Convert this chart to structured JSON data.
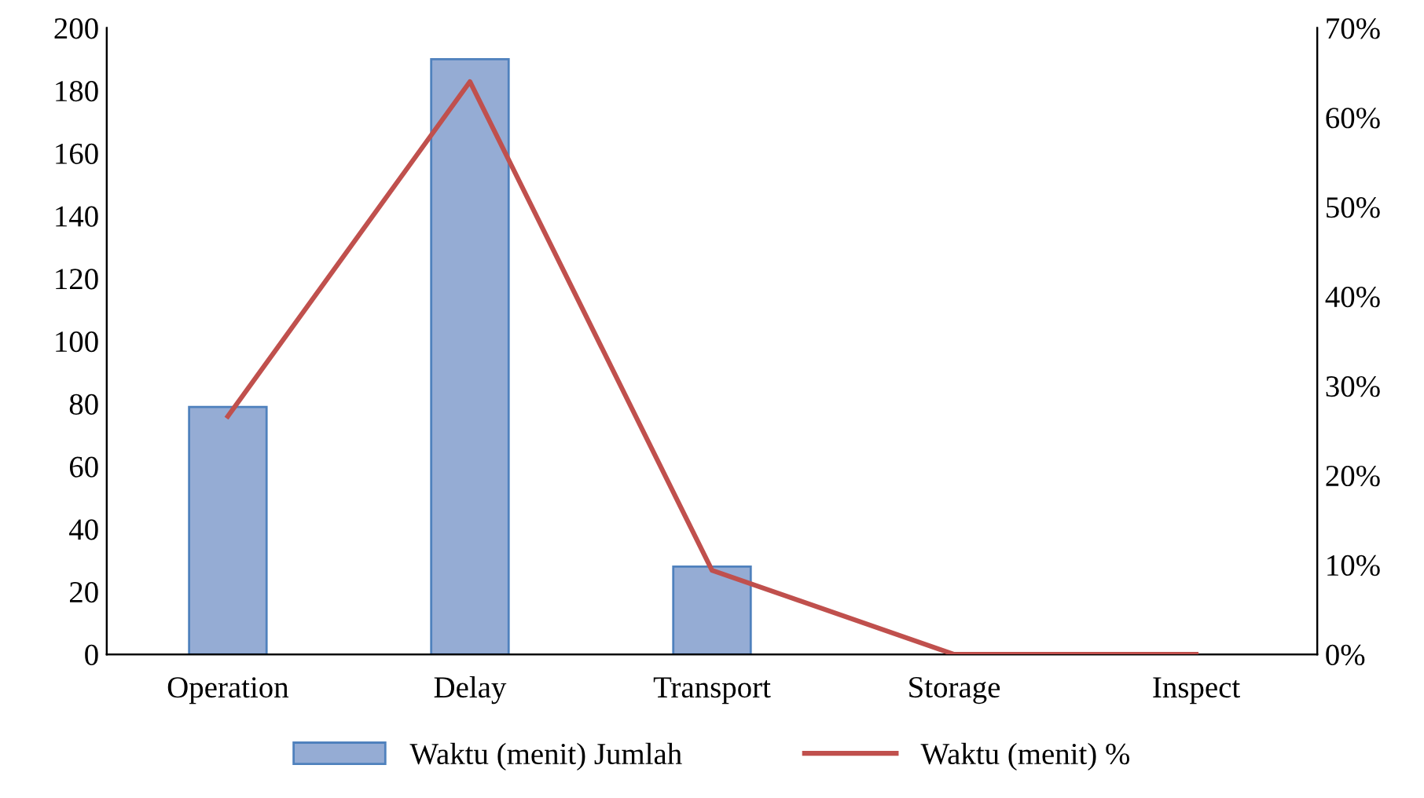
{
  "chart_data": {
    "type": "bar",
    "categories": [
      "Operation",
      "Delay",
      "Transport",
      "Storage",
      "Inspect"
    ],
    "series": [
      {
        "name": "Waktu (menit) Jumlah",
        "color": "#95acd4",
        "values": [
          79,
          190,
          28,
          0,
          0
        ]
      },
      {
        "name": "Waktu (menit) %",
        "type": "line",
        "axis": "y2",
        "color": "#c0504d",
        "values": [
          26.6,
          64.0,
          9.4,
          0,
          0
        ]
      }
    ],
    "ylim": [
      0,
      200
    ],
    "yticks": [
      0,
      20,
      40,
      60,
      80,
      100,
      120,
      140,
      160,
      180,
      200
    ],
    "y2lim": [
      0,
      70
    ],
    "y2ticks": [
      {
        "value": 0,
        "label": "0%"
      },
      {
        "value": 10,
        "label": "10%"
      },
      {
        "value": 20,
        "label": "20%"
      },
      {
        "value": 30,
        "label": "30%"
      },
      {
        "value": 40,
        "label": "40%"
      },
      {
        "value": 50,
        "label": "50%"
      },
      {
        "value": 60,
        "label": "60%"
      },
      {
        "value": 70,
        "label": "70%"
      }
    ],
    "grid": false,
    "legend": "bottom",
    "marker": "none",
    "line_style": "solid"
  }
}
